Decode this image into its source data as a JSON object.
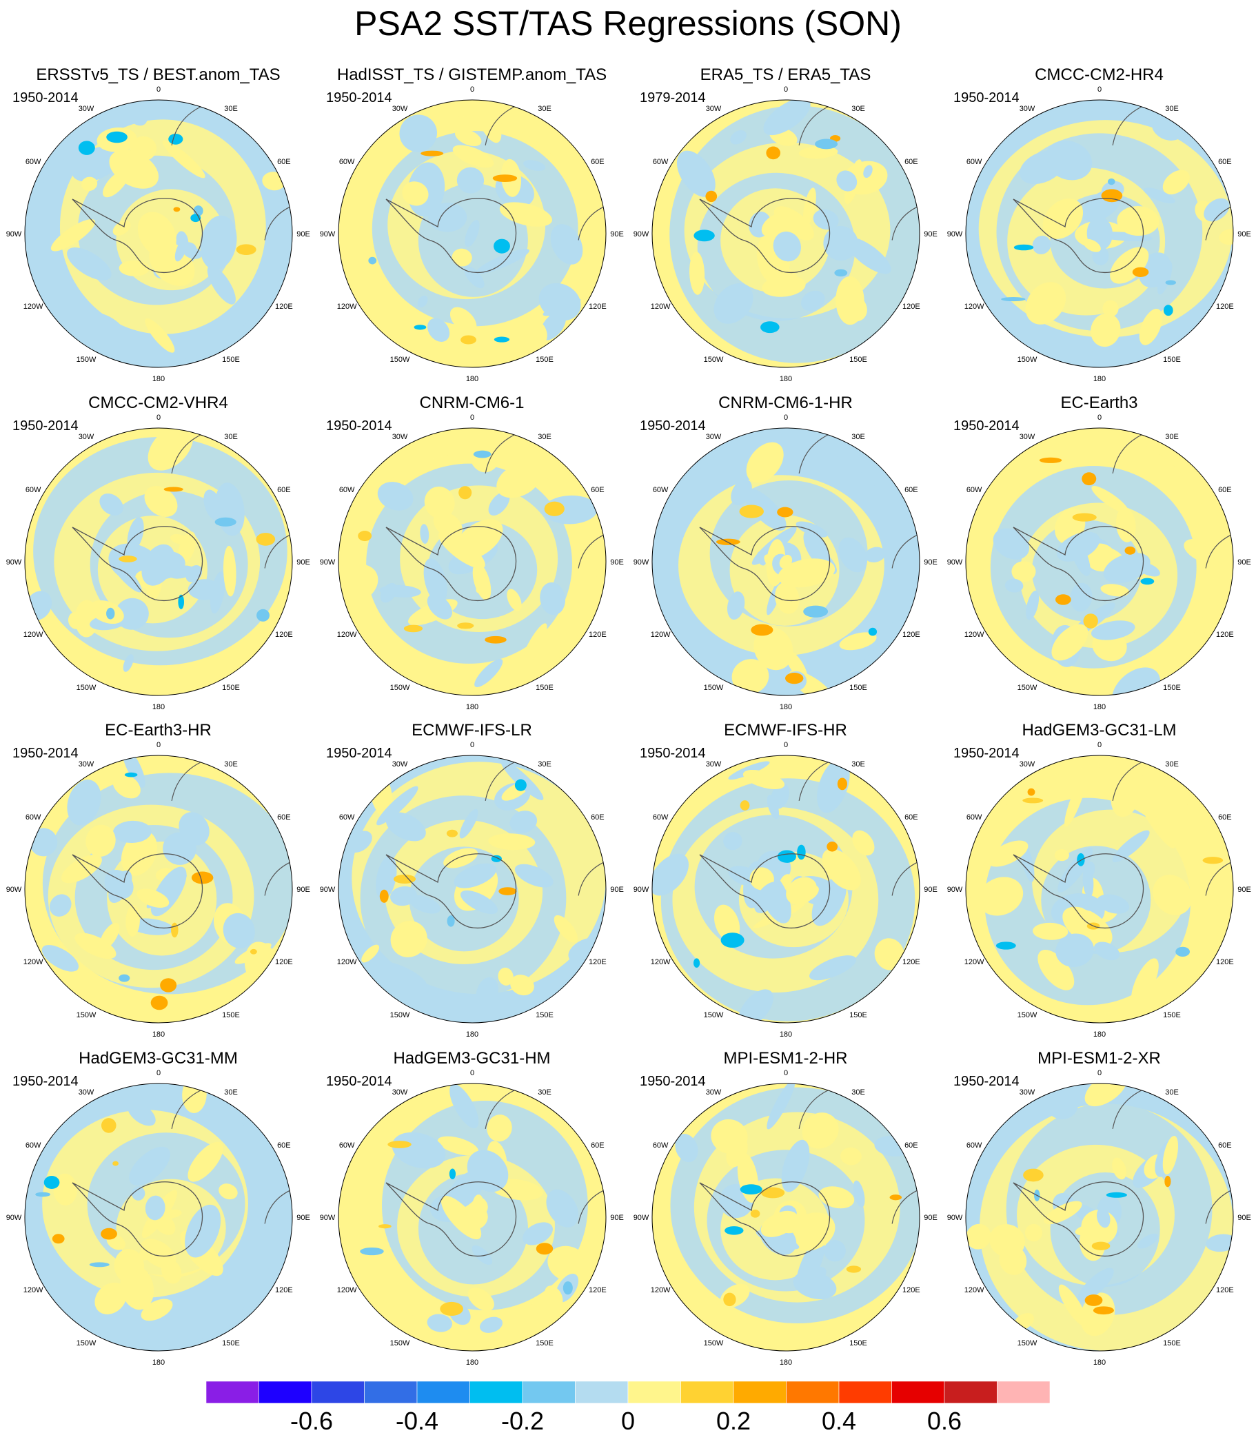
{
  "figure": {
    "title": "PSA2 SST/TAS Regressions (SON)"
  },
  "longitude_labels": [
    "0",
    "30E",
    "60E",
    "90E",
    "120E",
    "150E",
    "180",
    "150W",
    "120W",
    "90W",
    "60W",
    "30W"
  ],
  "panels": [
    {
      "title": "ERSSTv5_TS / BEST.anom_TAS",
      "period": "1950-2014"
    },
    {
      "title": "HadISST_TS / GISTEMP.anom_TAS",
      "period": "1950-2014"
    },
    {
      "title": "ERA5_TS / ERA5_TAS",
      "period": "1979-2014"
    },
    {
      "title": "CMCC-CM2-HR4",
      "period": "1950-2014"
    },
    {
      "title": "CMCC-CM2-VHR4",
      "period": "1950-2014"
    },
    {
      "title": "CNRM-CM6-1",
      "period": "1950-2014"
    },
    {
      "title": "CNRM-CM6-1-HR",
      "period": "1950-2014"
    },
    {
      "title": "EC-Earth3",
      "period": "1950-2014"
    },
    {
      "title": "EC-Earth3-HR",
      "period": "1950-2014"
    },
    {
      "title": "ECMWF-IFS-LR",
      "period": "1950-2014"
    },
    {
      "title": "ECMWF-IFS-HR",
      "period": "1950-2014"
    },
    {
      "title": "HadGEM3-GC31-LM",
      "period": "1950-2014"
    },
    {
      "title": "HadGEM3-GC31-MM",
      "period": "1950-2014"
    },
    {
      "title": "HadGEM3-GC31-HM",
      "period": "1950-2014"
    },
    {
      "title": "MPI-ESM1-2-HR",
      "period": "1950-2014"
    },
    {
      "title": "MPI-ESM1-2-XR",
      "period": "1950-2014"
    }
  ],
  "colorbar": {
    "colors": [
      "#8a1ee6",
      "#1e00ff",
      "#2d46e6",
      "#326ee6",
      "#1e8cf0",
      "#00bef0",
      "#73c8f0",
      "#b4dcf0",
      "#fff58c",
      "#ffd232",
      "#ffaa00",
      "#ff7800",
      "#ff3c00",
      "#e60000",
      "#c81e1e",
      "#ffb4b4"
    ],
    "tick_labels": [
      "-0.6",
      "-0.4",
      "-0.2",
      "0",
      "0.2",
      "0.4",
      "0.6"
    ]
  },
  "palette": {
    "background": "#ffffff",
    "neutral_negative": "#b4dcf0",
    "neutral_positive": "#fff58c"
  }
}
